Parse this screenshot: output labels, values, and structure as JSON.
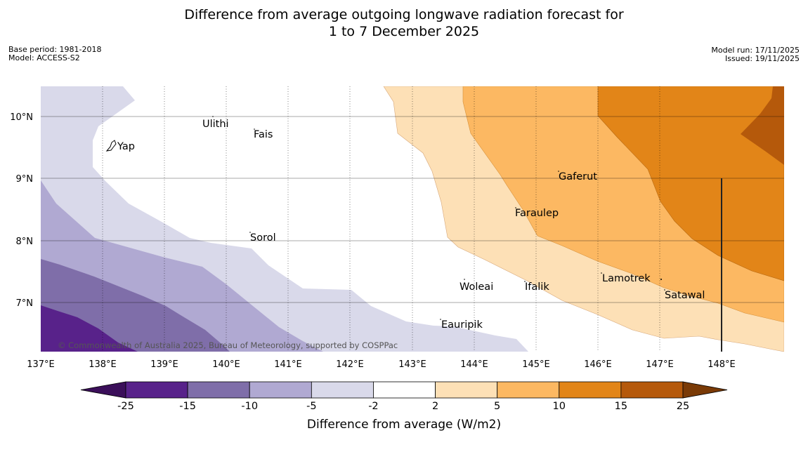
{
  "title_line1": "Difference from average outgoing longwave radiation forecast for",
  "title_line2": "1 to 7 December 2025",
  "base_period": "Base period: 1981-2018",
  "model": "Model: ACCESS-S2",
  "model_run": "Model run: 17/11/2025",
  "issued": "Issued: 19/11/2025",
  "copyright": "© Commonwealth of Australia 2025, Bureau of Meteorology, supported by COSPPac",
  "x_ticks": [
    "137°E",
    "138°E",
    "139°E",
    "140°E",
    "141°E",
    "142°E",
    "143°E",
    "144°E",
    "145°E",
    "146°E",
    "147°E",
    "148°E"
  ],
  "y_ticks": [
    "10°N",
    "9°N",
    "8°N",
    "7°N"
  ],
  "places": [
    "Ulithi",
    "Fais",
    "Yap",
    "Gaferut",
    "Faraulep",
    "Sorol",
    "Lamotrek",
    "Woleai",
    "Ifalik",
    "Satawal",
    "Eauripik"
  ],
  "colorbar": {
    "label": "Difference from average (W/m2)",
    "ticks": [
      "-25",
      "-15",
      "-10",
      "-5",
      "-2",
      "2",
      "5",
      "10",
      "15",
      "25"
    ],
    "colors": [
      "#3b0f5a",
      "#58228a",
      "#7f6ea9",
      "#b0a9d2",
      "#d9d9ea",
      "#ffffff",
      "#fde0b6",
      "#fcb862",
      "#e28518",
      "#b5590b",
      "#7a3a06"
    ]
  }
}
